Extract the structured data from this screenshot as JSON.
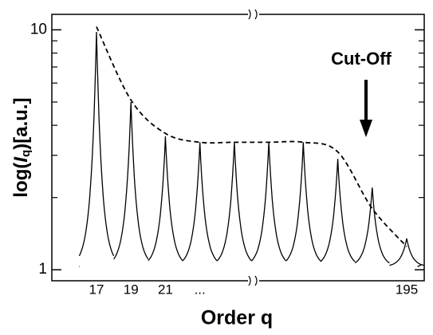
{
  "chart_data": {
    "type": "line",
    "xlabel": "Order q",
    "ylabel": {
      "prefix": "log(",
      "symbol": "I",
      "subscript": "q",
      "suffix": ")[a.u.]"
    },
    "categories": [
      "17",
      "19",
      "21",
      "...",
      null,
      null,
      null,
      null,
      null,
      "195"
    ],
    "series": [
      {
        "name": "spectrum",
        "color": "#000000",
        "style": "peaks",
        "values": [
          9.8,
          5.0,
          3.6,
          3.4,
          3.4,
          3.4,
          3.4,
          2.9,
          2.2,
          1.35
        ]
      },
      {
        "name": "envelope",
        "color": "#000000",
        "style": "dashed",
        "values": [
          10.3,
          5.1,
          3.7,
          3.4,
          3.4,
          3.4,
          3.4,
          3.1,
          1.8,
          1.25
        ]
      }
    ],
    "log_y": true,
    "ylim": [
      0.9,
      11.6
    ],
    "yticks": [
      1,
      10
    ],
    "yminor": [
      2,
      3,
      4,
      5,
      6,
      7,
      8,
      9
    ],
    "annotation": {
      "text": "Cut-Off",
      "color": "#1a1adc"
    }
  }
}
